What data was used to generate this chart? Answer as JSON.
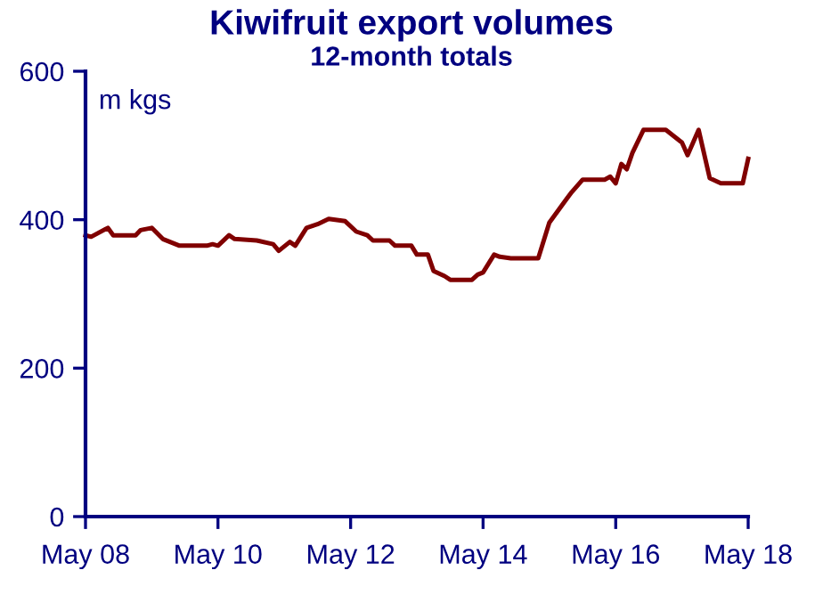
{
  "chart_data": {
    "type": "line",
    "title": "Kiwifruit export volumes",
    "subtitle": "12-month totals",
    "ylabel": "m kgs",
    "x": [
      "2008-05",
      "2008-06",
      "2008-09",
      "2008-10",
      "2009-02",
      "2009-03",
      "2009-05",
      "2009-07",
      "2009-10",
      "2010-03",
      "2010-04",
      "2010-05",
      "2010-07",
      "2010-08",
      "2010-12",
      "2011-03",
      "2011-04",
      "2011-06",
      "2011-07",
      "2011-09",
      "2011-11",
      "2012-01",
      "2012-04",
      "2012-06",
      "2012-08",
      "2012-09",
      "2012-12",
      "2013-01",
      "2013-04",
      "2013-05",
      "2013-07",
      "2013-08",
      "2013-10",
      "2013-11",
      "2014-03",
      "2014-04",
      "2014-05",
      "2014-07",
      "2014-08",
      "2014-10",
      "2015-03",
      "2015-05",
      "2015-08",
      "2015-09",
      "2015-11",
      "2016-03",
      "2016-04",
      "2016-05",
      "2016-06",
      "2016-07",
      "2016-08",
      "2016-10",
      "2017-02",
      "2017-05",
      "2017-06",
      "2017-08",
      "2017-10",
      "2017-12",
      "2018-04",
      "2018-05"
    ],
    "series": [
      {
        "color": "#800000",
        "values": [
          379,
          377,
          389,
          379,
          379,
          386,
          389,
          374,
          365,
          365,
          367,
          365,
          379,
          374,
          372,
          367,
          358,
          370,
          365,
          389,
          394,
          401,
          398,
          384,
          379,
          372,
          372,
          365,
          365,
          353,
          353,
          331,
          324,
          319,
          319,
          326,
          329,
          353,
          350,
          348,
          348,
          396,
          427,
          437,
          454,
          454,
          458,
          449,
          475,
          468,
          490,
          521,
          521,
          504,
          487,
          521,
          456,
          449,
          449,
          482
        ]
      }
    ],
    "xlim": [
      "2008-05",
      "2018-05"
    ],
    "xticks": [
      {
        "value": "2008-05",
        "label": "May 08"
      },
      {
        "value": "2010-05",
        "label": "May 10"
      },
      {
        "value": "2012-05",
        "label": "May 12"
      },
      {
        "value": "2014-05",
        "label": "May 14"
      },
      {
        "value": "2016-05",
        "label": "May 16"
      },
      {
        "value": "2018-05",
        "label": "May 18"
      }
    ],
    "ylim": [
      0,
      600
    ],
    "yticks": [
      0,
      200,
      400,
      600
    ],
    "grid": false,
    "marker": "none",
    "line_style": "solid"
  }
}
